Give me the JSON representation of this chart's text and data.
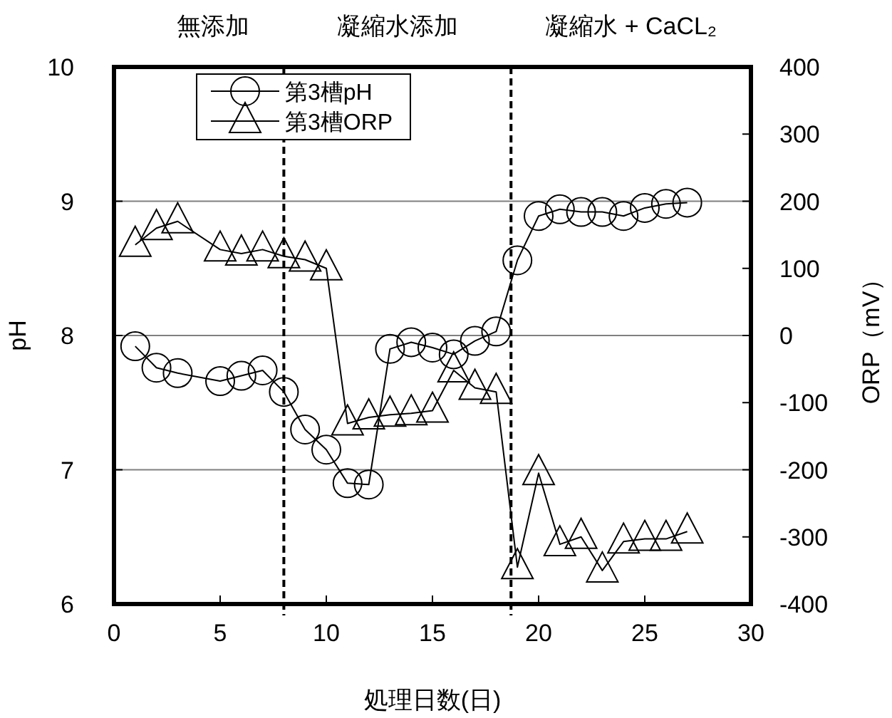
{
  "chart_data": {
    "type": "line",
    "xlabel": "処理日数(日)",
    "ylabel": "pH",
    "y2label": "ORP（mV）",
    "annotations": [
      "無添加",
      "凝縮水添加",
      "凝縮水 + CaCL₂"
    ],
    "xlim": [
      0,
      30
    ],
    "xticks": [
      0,
      5,
      10,
      15,
      20,
      25,
      30
    ],
    "ylim": [
      6,
      10
    ],
    "yticks": [
      6,
      7,
      8,
      9,
      10
    ],
    "y2lim": [
      -400,
      400
    ],
    "y2ticks": [
      -400,
      -300,
      -200,
      -100,
      0,
      100,
      200,
      300,
      400
    ],
    "grid": "y",
    "legend": "top left",
    "line_style": "solid",
    "ref_lines": [
      {
        "axis": "x",
        "value": 8,
        "line_style": "dashed"
      },
      {
        "axis": "x",
        "value": 18.7,
        "line_style": "dashed"
      }
    ],
    "series": [
      {
        "name": "第3槽pH",
        "color": "#000000",
        "marker": "circle",
        "x": [
          1,
          2,
          3,
          5,
          6,
          7,
          8,
          9,
          10,
          11,
          12,
          13,
          14,
          15,
          16,
          17,
          18,
          19,
          20,
          21,
          22,
          23,
          24,
          25,
          26,
          27
        ],
        "values": [
          7.92,
          7.76,
          7.72,
          7.66,
          7.7,
          7.74,
          7.58,
          7.3,
          7.15,
          6.9,
          6.89,
          7.9,
          7.95,
          7.91,
          7.86,
          7.96,
          8.03,
          8.56,
          8.89,
          8.94,
          8.92,
          8.92,
          8.89,
          8.95,
          8.98,
          8.99
        ]
      },
      {
        "name": "第3槽ORP",
        "color": "#000000",
        "marker": "triangle",
        "axis": "y2",
        "x": [
          1,
          2,
          3,
          5,
          6,
          7,
          8,
          9,
          10,
          11,
          12,
          13,
          14,
          15,
          16,
          17,
          18,
          19,
          20,
          21,
          22,
          23,
          24,
          25,
          26,
          27
        ],
        "values": [
          135,
          160,
          170,
          128,
          122,
          128,
          118,
          113,
          100,
          -131,
          -122,
          -118,
          -116,
          -112,
          -52,
          -78,
          -84,
          -345,
          -205,
          -311,
          -300,
          -350,
          -307,
          -303,
          -303,
          -292
        ]
      }
    ]
  }
}
